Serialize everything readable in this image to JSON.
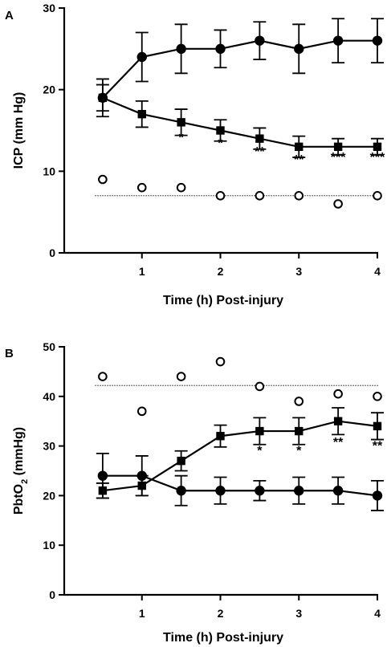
{
  "chart_data": [
    {
      "type": "line",
      "panel_label": "A",
      "xlabel": "Time (h) Post-injury",
      "ylabel": "ICP (mm Hg)",
      "xlim": [
        0.3,
        4.0
      ],
      "ylim": [
        0,
        30
      ],
      "x_ticks": [
        1,
        2,
        3,
        4
      ],
      "y_ticks": [
        0,
        10,
        20,
        30
      ],
      "grid": false,
      "reference_line_y": 7,
      "series": [
        {
          "marker": "circle-filled",
          "connected": true,
          "x": [
            0.5,
            1,
            1.5,
            2,
            2.5,
            3,
            3.5,
            4
          ],
          "y": [
            19,
            24,
            25,
            25,
            26,
            25,
            26,
            26
          ],
          "err": [
            2.3,
            3,
            3,
            2.3,
            2.3,
            3,
            2.7,
            2.7
          ]
        },
        {
          "marker": "square-filled",
          "connected": true,
          "x": [
            0.5,
            1,
            1.5,
            2,
            2.5,
            3,
            3.5,
            4
          ],
          "y": [
            19,
            17,
            16,
            15,
            14,
            13,
            13,
            13
          ],
          "err": [
            1.6,
            1.6,
            1.6,
            1.3,
            1.3,
            1.3,
            1,
            1
          ]
        },
        {
          "marker": "circle-open",
          "connected": false,
          "x": [
            0.5,
            1,
            1.5,
            2,
            2.5,
            3,
            3.5,
            4
          ],
          "y": [
            9,
            8,
            8,
            7,
            7,
            7,
            6,
            7
          ],
          "err": []
        }
      ],
      "annotations": [
        {
          "x": 1.5,
          "y": 14.4,
          "text": "*"
        },
        {
          "x": 2,
          "y": 13.7,
          "text": "*"
        },
        {
          "x": 2.5,
          "y": 12.7,
          "text": "**"
        },
        {
          "x": 3,
          "y": 11.7,
          "text": "**"
        },
        {
          "x": 3.5,
          "y": 12,
          "text": "***"
        },
        {
          "x": 4,
          "y": 12,
          "text": "***"
        }
      ]
    },
    {
      "type": "line",
      "panel_label": "B",
      "xlabel": "Time (h) Post-injury",
      "ylabel": "PbtO",
      "ylabel_sub": "2",
      "ylabel_unit": " (mmHg)",
      "xlim": [
        0.3,
        4.0
      ],
      "ylim": [
        0,
        50
      ],
      "x_ticks": [
        1,
        2,
        3,
        4
      ],
      "y_ticks": [
        0,
        10,
        20,
        30,
        40,
        50
      ],
      "grid": false,
      "reference_line_y": 42.2,
      "series": [
        {
          "marker": "circle-filled",
          "connected": true,
          "x": [
            0.5,
            1,
            1.5,
            2,
            2.5,
            3,
            3.5,
            4
          ],
          "y": [
            24,
            24,
            21,
            21,
            21,
            21,
            21,
            20
          ],
          "err": [
            4.5,
            4,
            3,
            2.7,
            2,
            2.7,
            2.7,
            3
          ]
        },
        {
          "marker": "square-filled",
          "connected": true,
          "x": [
            0.5,
            1,
            1.5,
            2,
            2.5,
            3,
            3.5,
            4
          ],
          "y": [
            21,
            22,
            27,
            32,
            33,
            33,
            35,
            34
          ],
          "err": [
            1.5,
            2,
            2,
            2.2,
            2.7,
            2.7,
            2.7,
            2.7
          ]
        },
        {
          "marker": "circle-open",
          "connected": false,
          "x": [
            0.5,
            1,
            1.5,
            2,
            2.5,
            3,
            3.5,
            4
          ],
          "y": [
            44,
            37,
            44,
            47,
            42,
            39,
            40.5,
            40
          ],
          "err": []
        }
      ],
      "annotations": [
        {
          "x": 2.5,
          "y": 29.5,
          "text": "*"
        },
        {
          "x": 3,
          "y": 29.5,
          "text": "*"
        },
        {
          "x": 3.5,
          "y": 31.2,
          "text": "**"
        },
        {
          "x": 4,
          "y": 30.5,
          "text": "**"
        }
      ]
    }
  ]
}
